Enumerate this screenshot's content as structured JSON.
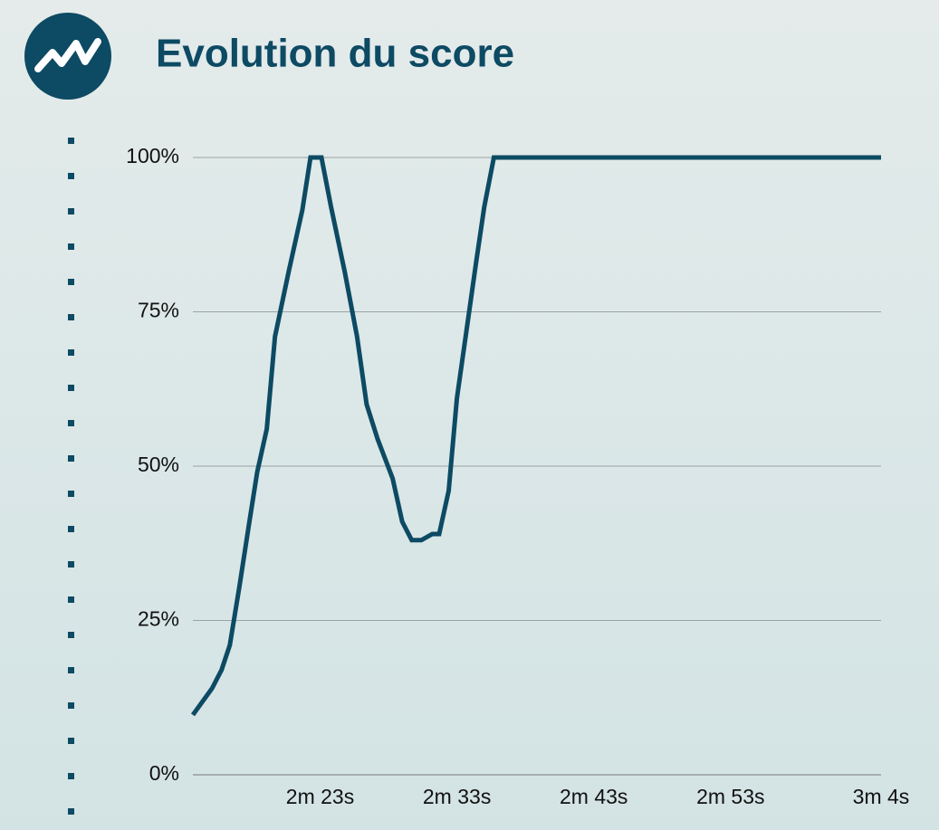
{
  "chart_data": {
    "type": "line",
    "title": "Evolution du score",
    "x": [
      133.7,
      135.1,
      135.8,
      136.4,
      137.1,
      137.8,
      138.4,
      139.1,
      139.7,
      140.7,
      141.7,
      142.3,
      143.1,
      143.8,
      144.8,
      145.7,
      146.4,
      147.2,
      148.3,
      149.0,
      149.7,
      150.4,
      151.2,
      151.7,
      152.4,
      153.0,
      153.7,
      154.4,
      155.0,
      155.7,
      184
    ],
    "series": [
      {
        "color": "#0d4a63",
        "values": [
          9.7,
          14,
          17,
          21,
          30.5,
          40.5,
          49,
          56,
          71,
          81.5,
          91.5,
          100,
          100,
          92,
          81.5,
          71,
          60,
          54.4,
          48,
          41,
          38,
          38,
          39,
          39,
          46,
          61,
          72,
          83,
          92,
          100,
          100
        ]
      }
    ],
    "xlim": [
      133.7,
      184
    ],
    "xticks": [
      {
        "value": 143,
        "label": "2m 23s"
      },
      {
        "value": 153,
        "label": "2m 33s"
      },
      {
        "value": 163,
        "label": "2m 43s"
      },
      {
        "value": 173,
        "label": "2m 53s"
      },
      {
        "value": 184,
        "label": "3m 4s"
      }
    ],
    "ylim": [
      0,
      100
    ],
    "yticks": [
      {
        "value": 0,
        "label": "0%"
      },
      {
        "value": 25,
        "label": "25%"
      },
      {
        "value": 50,
        "label": "50%"
      },
      {
        "value": 75,
        "label": "75%"
      },
      {
        "value": 100,
        "label": "100%"
      }
    ],
    "grid": true
  }
}
